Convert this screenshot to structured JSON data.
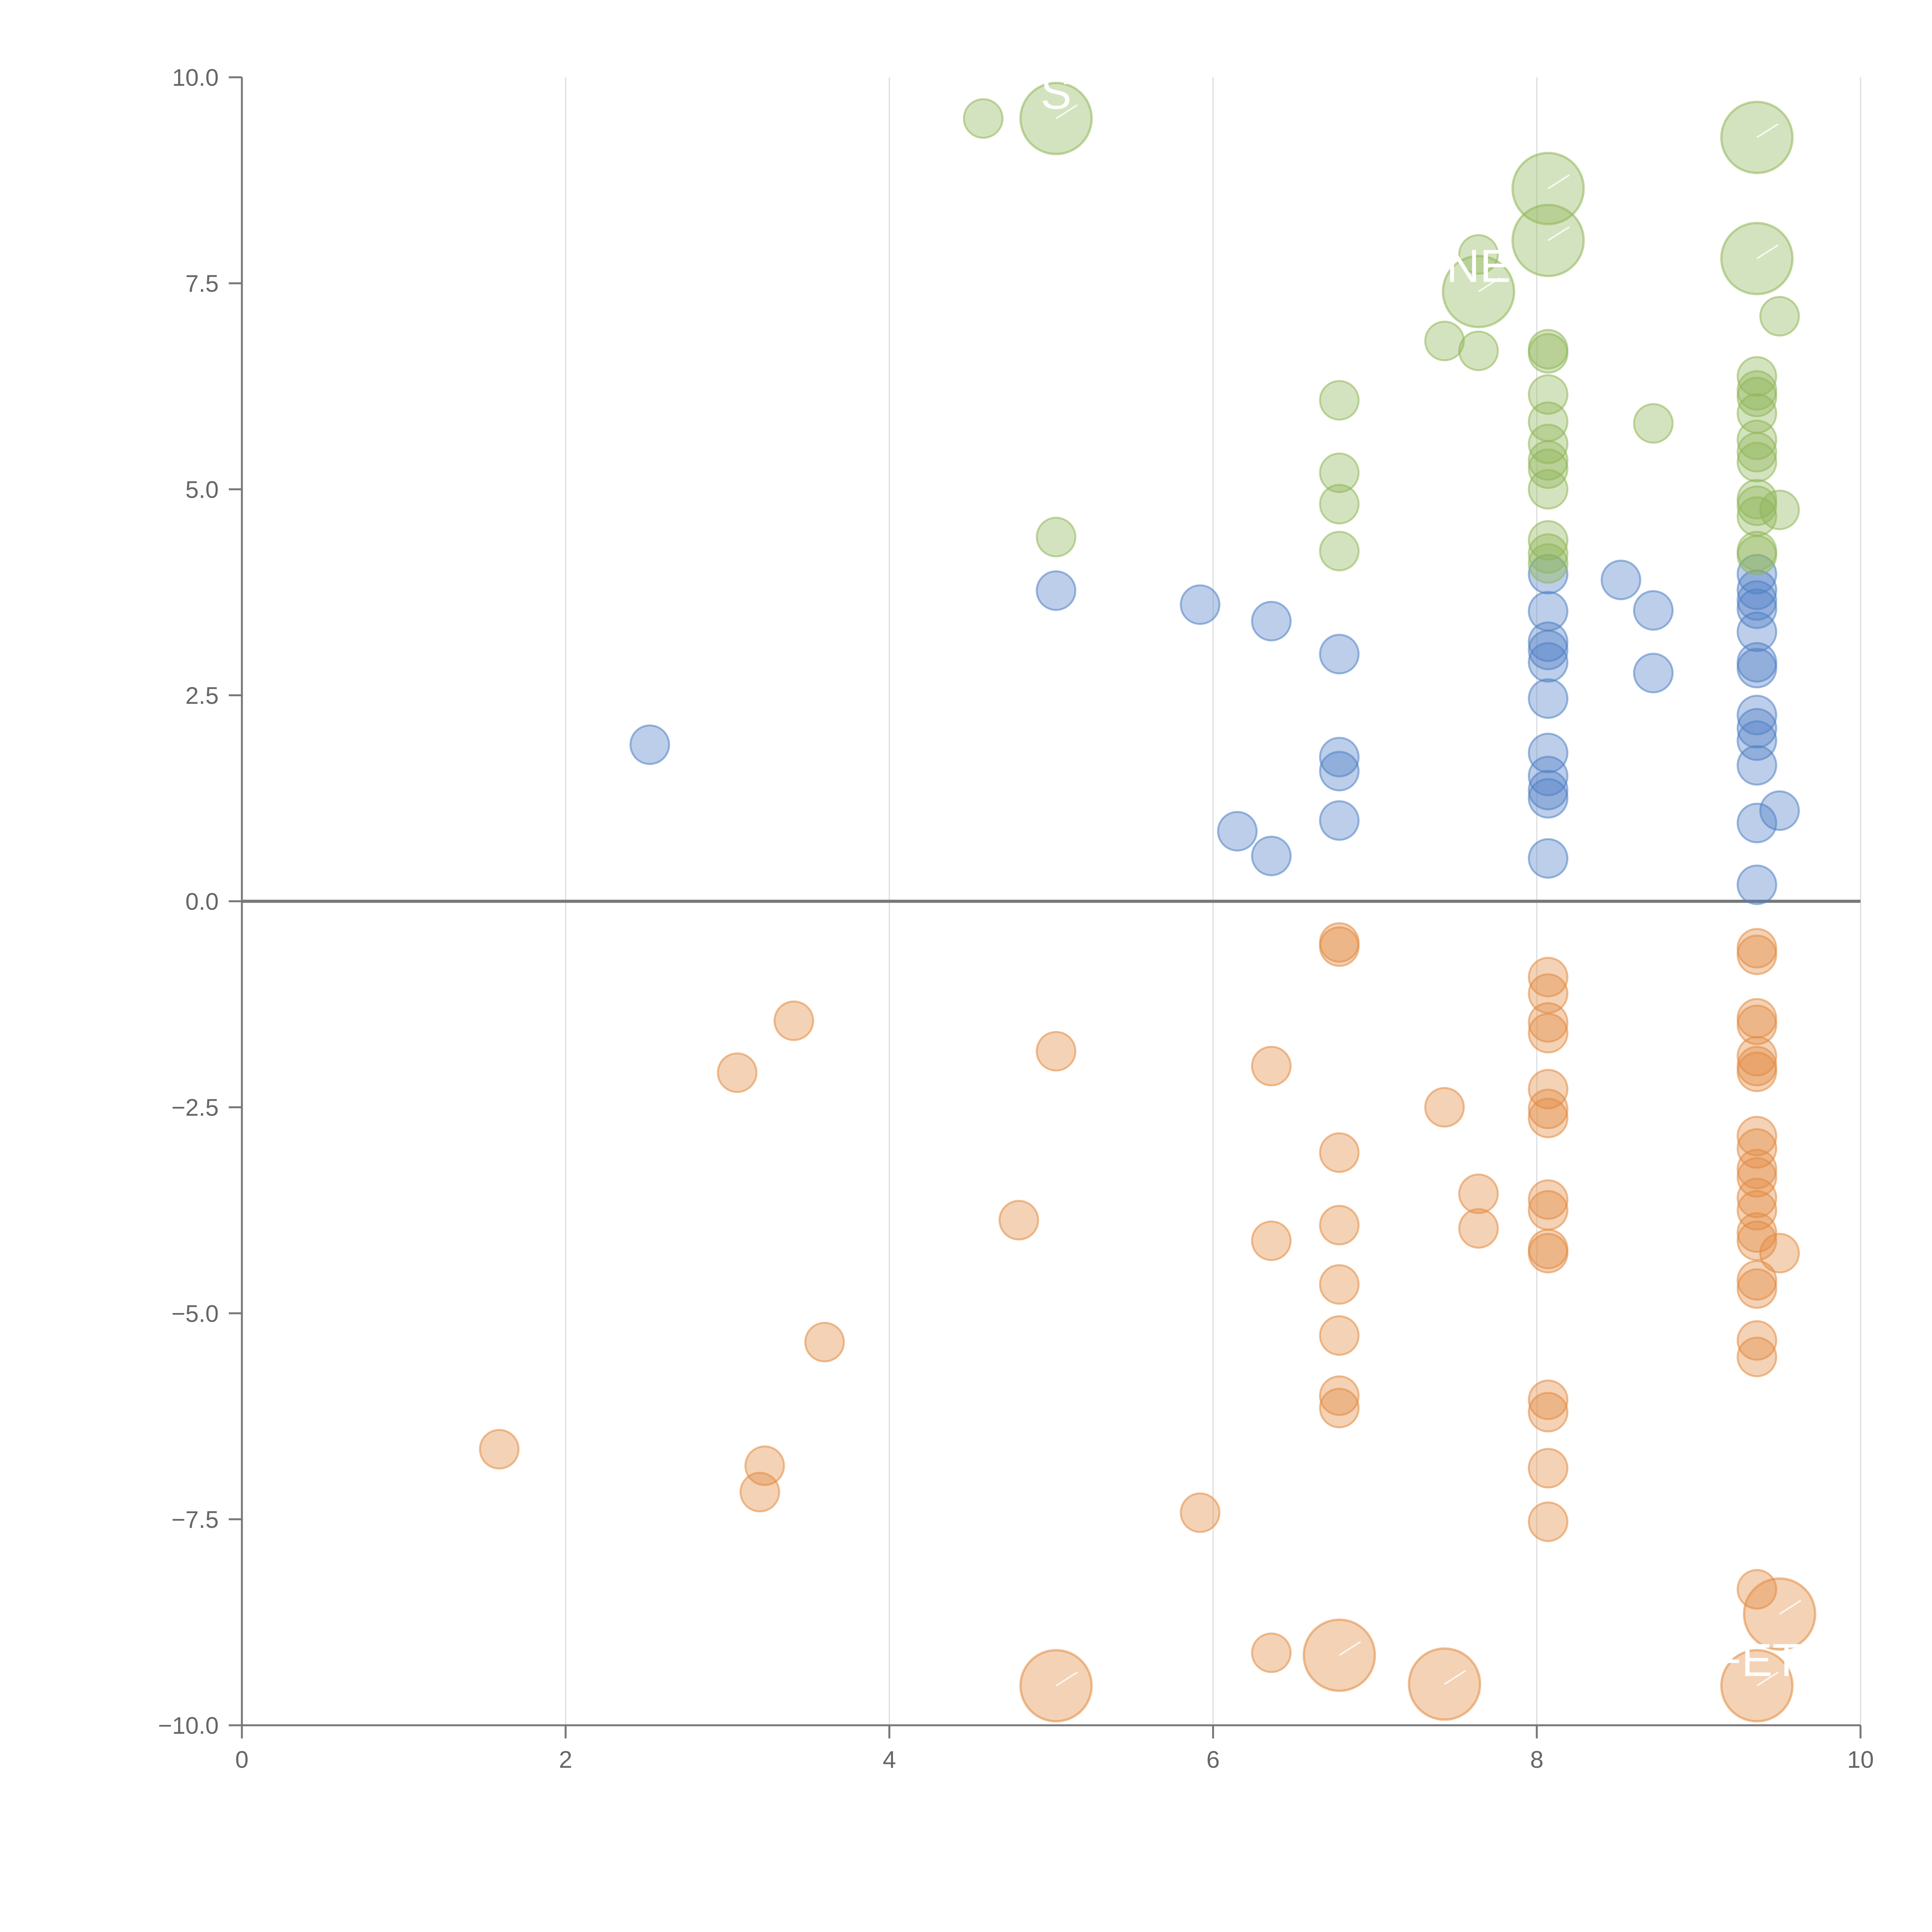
{
  "chart_data": {
    "type": "scatter",
    "title": "",
    "xlabel": "",
    "ylabel": "",
    "xlim": [
      0,
      10
    ],
    "ylim": [
      -10,
      10
    ],
    "x_ticks": [
      0,
      2,
      4,
      6,
      8,
      10
    ],
    "x_tick_labels": [
      "0",
      "2",
      "4",
      "6",
      "8",
      "10"
    ],
    "y_ticks": [
      10,
      7.5,
      5,
      2.5,
      0,
      -2.5,
      -5,
      -7.5,
      -10
    ],
    "y_tick_labels": [
      "10.0",
      "7.5",
      "5.0",
      "2.5",
      "0.0",
      "−2.5",
      "−5.0",
      "−7.5",
      "−10.0"
    ],
    "grid": "vertical",
    "colors": {
      "blue": "#4f7fc4",
      "orange": "#e28a3f",
      "green": "#8fb657",
      "axis": "#777777",
      "grid": "#dddddd",
      "zero_line": "#777777"
    },
    "series": [
      {
        "name": "blue",
        "color": "#4f7fc4",
        "points": [
          [
            2.52,
            1.9
          ],
          [
            5.03,
            3.77
          ],
          [
            5.92,
            3.6
          ],
          [
            6.36,
            3.4
          ],
          [
            6.15,
            0.85
          ],
          [
            6.36,
            0.55
          ],
          [
            6.78,
            3.0
          ],
          [
            6.78,
            1.75
          ],
          [
            6.78,
            1.58
          ],
          [
            6.78,
            0.98
          ],
          [
            8.07,
            3.97
          ],
          [
            8.07,
            3.52
          ],
          [
            8.07,
            3.15
          ],
          [
            8.07,
            3.05
          ],
          [
            8.07,
            2.9
          ],
          [
            8.07,
            2.46
          ],
          [
            8.07,
            1.8
          ],
          [
            8.07,
            1.52
          ],
          [
            8.07,
            1.35
          ],
          [
            8.07,
            1.25
          ],
          [
            8.07,
            0.52
          ],
          [
            8.52,
            3.9
          ],
          [
            8.72,
            3.53
          ],
          [
            8.72,
            2.77
          ],
          [
            9.36,
            3.97
          ],
          [
            9.36,
            3.78
          ],
          [
            9.36,
            3.65
          ],
          [
            9.36,
            3.55
          ],
          [
            9.36,
            3.27
          ],
          [
            9.36,
            2.9
          ],
          [
            9.36,
            2.83
          ],
          [
            9.36,
            2.26
          ],
          [
            9.36,
            2.1
          ],
          [
            9.36,
            1.95
          ],
          [
            9.36,
            1.65
          ],
          [
            9.36,
            0.95
          ],
          [
            9.36,
            0.2
          ],
          [
            9.5,
            1.1
          ]
        ]
      },
      {
        "name": "orange",
        "color": "#e28a3f",
        "points": [
          [
            1.59,
            -6.65
          ],
          [
            3.06,
            -2.08
          ],
          [
            3.41,
            -1.45
          ],
          [
            3.6,
            -5.35
          ],
          [
            3.23,
            -6.85
          ],
          [
            3.2,
            -7.17
          ],
          [
            4.8,
            -3.87
          ],
          [
            5.03,
            -1.82
          ],
          [
            5.92,
            -7.42
          ],
          [
            6.36,
            -2.0
          ],
          [
            6.36,
            -4.12
          ],
          [
            6.36,
            -9.12
          ],
          [
            6.78,
            -0.5
          ],
          [
            6.78,
            -0.55
          ],
          [
            6.78,
            -3.05
          ],
          [
            6.78,
            -3.93
          ],
          [
            6.78,
            -4.65
          ],
          [
            6.78,
            -5.27
          ],
          [
            6.78,
            -6.0
          ],
          [
            6.78,
            -6.15
          ],
          [
            7.43,
            -2.5
          ],
          [
            7.64,
            -3.55
          ],
          [
            7.64,
            -3.97
          ],
          [
            8.07,
            -0.92
          ],
          [
            8.07,
            -1.12
          ],
          [
            8.07,
            -1.47
          ],
          [
            8.07,
            -1.6
          ],
          [
            8.07,
            -2.28
          ],
          [
            8.07,
            -2.52
          ],
          [
            8.07,
            -2.63
          ],
          [
            8.07,
            -3.62
          ],
          [
            8.07,
            -3.75
          ],
          [
            8.07,
            -4.22
          ],
          [
            8.07,
            -4.27
          ],
          [
            8.07,
            -6.05
          ],
          [
            8.07,
            -6.2
          ],
          [
            8.07,
            -6.88
          ],
          [
            8.07,
            -7.53
          ],
          [
            9.36,
            -0.57
          ],
          [
            9.36,
            -0.65
          ],
          [
            9.36,
            -1.42
          ],
          [
            9.36,
            -1.5
          ],
          [
            9.36,
            -1.88
          ],
          [
            9.36,
            -2.0
          ],
          [
            9.36,
            -2.07
          ],
          [
            9.36,
            -2.85
          ],
          [
            9.36,
            -3.0
          ],
          [
            9.36,
            -3.25
          ],
          [
            9.36,
            -3.35
          ],
          [
            9.36,
            -3.6
          ],
          [
            9.36,
            -3.75
          ],
          [
            9.36,
            -4.02
          ],
          [
            9.36,
            -4.12
          ],
          [
            9.36,
            -4.6
          ],
          [
            9.36,
            -4.7
          ],
          [
            9.36,
            -5.33
          ],
          [
            9.36,
            -5.53
          ],
          [
            9.36,
            -8.35
          ],
          [
            9.5,
            -4.27
          ]
        ]
      },
      {
        "name": "green",
        "color": "#8fb657",
        "points": [
          [
            4.58,
            9.5
          ],
          [
            5.03,
            4.42
          ],
          [
            6.78,
            6.08
          ],
          [
            6.78,
            5.2
          ],
          [
            6.78,
            4.82
          ],
          [
            6.78,
            4.25
          ],
          [
            7.43,
            6.8
          ],
          [
            7.64,
            7.85
          ],
          [
            7.64,
            6.68
          ],
          [
            8.07,
            6.7
          ],
          [
            8.07,
            6.65
          ],
          [
            8.07,
            6.15
          ],
          [
            8.07,
            5.82
          ],
          [
            8.07,
            5.55
          ],
          [
            8.07,
            5.35
          ],
          [
            8.07,
            5.25
          ],
          [
            8.07,
            5.0
          ],
          [
            8.07,
            4.38
          ],
          [
            8.07,
            4.22
          ],
          [
            8.07,
            4.1
          ],
          [
            8.72,
            5.8
          ],
          [
            9.36,
            6.37
          ],
          [
            9.36,
            6.2
          ],
          [
            9.36,
            6.12
          ],
          [
            9.36,
            5.92
          ],
          [
            9.36,
            5.6
          ],
          [
            9.36,
            5.45
          ],
          [
            9.36,
            5.33
          ],
          [
            9.36,
            4.88
          ],
          [
            9.36,
            4.8
          ],
          [
            9.36,
            4.67
          ],
          [
            9.36,
            4.25
          ],
          [
            9.36,
            4.2
          ],
          [
            9.5,
            7.1
          ],
          [
            9.5,
            4.75
          ]
        ]
      }
    ],
    "large_points": [
      {
        "series": "green",
        "x": 5.03,
        "y": 9.5,
        "label": "S"
      },
      {
        "series": "green",
        "x": 7.64,
        "y": 7.4,
        "label": "NE"
      },
      {
        "series": "green",
        "x": 8.07,
        "y": 8.65,
        "label": ""
      },
      {
        "series": "green",
        "x": 8.07,
        "y": 8.02,
        "label": ""
      },
      {
        "series": "green",
        "x": 9.36,
        "y": 9.27,
        "label": ""
      },
      {
        "series": "green",
        "x": 9.36,
        "y": 7.8,
        "label": ""
      },
      {
        "series": "orange",
        "x": 5.03,
        "y": -9.52,
        "label": ""
      },
      {
        "series": "orange",
        "x": 6.78,
        "y": -9.15,
        "label": ""
      },
      {
        "series": "orange",
        "x": 7.43,
        "y": -9.5,
        "label": ""
      },
      {
        "series": "orange",
        "x": 9.36,
        "y": -9.52,
        "label": "FET"
      },
      {
        "series": "orange",
        "x": 9.5,
        "y": -8.65,
        "label": ""
      }
    ]
  }
}
